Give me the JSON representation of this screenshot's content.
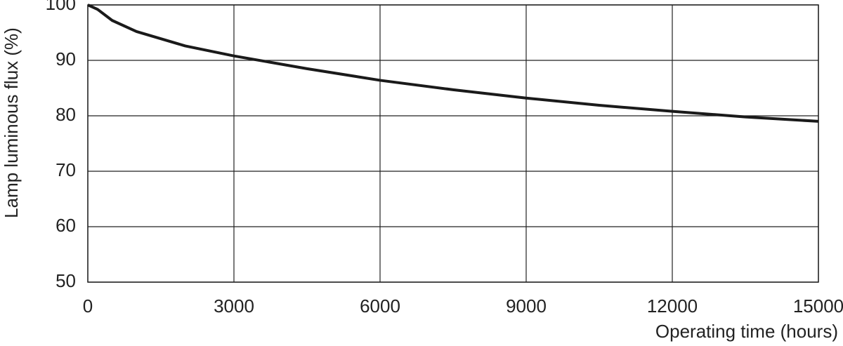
{
  "chart_data": {
    "type": "line",
    "x_label": "Operating time (hours)",
    "y_label": "Lamp luminous flux (%)",
    "x": [
      0,
      200,
      500,
      1000,
      2000,
      3000,
      4500,
      6000,
      7500,
      9000,
      10500,
      12000,
      13500,
      15000
    ],
    "values": [
      100,
      99.2,
      97.2,
      95.2,
      92.6,
      90.8,
      88.5,
      86.4,
      84.7,
      83.2,
      81.9,
      80.8,
      79.8,
      79.0
    ],
    "color": "#1a1a1a",
    "xlim": [
      0,
      15000
    ],
    "xticks": [
      0,
      3000,
      6000,
      9000,
      12000,
      15000
    ],
    "ylim": [
      50,
      100
    ],
    "yticks": [
      50,
      60,
      70,
      80,
      90,
      100
    ],
    "grid": true
  }
}
